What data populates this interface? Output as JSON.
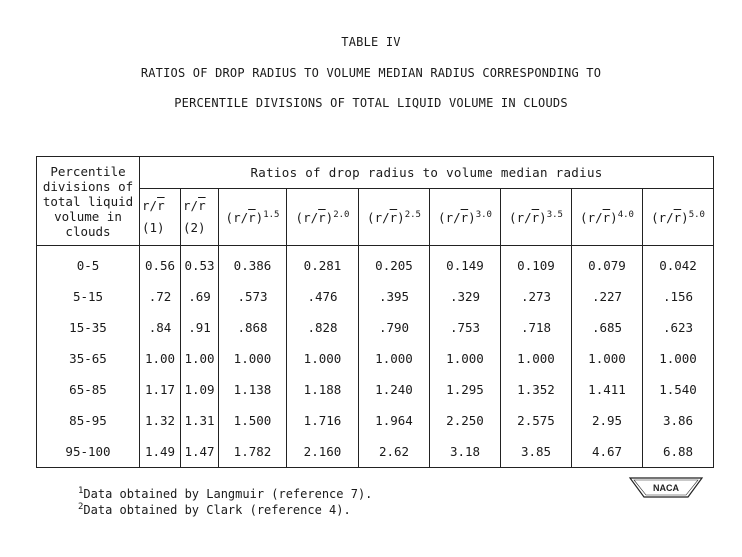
{
  "titles": {
    "table_number": "TABLE IV",
    "line1": "RATIOS OF DROP RADIUS TO VOLUME MEDIAN RADIUS CORRESPONDING TO",
    "line2": "PERCENTILE DIVISIONS OF TOTAL LIQUID VOLUME IN CLOUDS"
  },
  "table": {
    "row_header": [
      "Percentile",
      "divisions of",
      "total liquid",
      "volume in",
      "clouds"
    ],
    "span_header": "Ratios of drop radius to volume median radius",
    "columns": [
      {
        "base": "r/r",
        "note": "(1)"
      },
      {
        "base": "r/r",
        "note": "(2)"
      },
      {
        "base": "(r/r)",
        "exp": "1.5"
      },
      {
        "base": "(r/r)",
        "exp": "2.0"
      },
      {
        "base": "(r/r)",
        "exp": "2.5"
      },
      {
        "base": "(r/r)",
        "exp": "3.0"
      },
      {
        "base": "(r/r)",
        "exp": "3.5"
      },
      {
        "base": "(r/r)",
        "exp": "4.0"
      },
      {
        "base": "(r/r)",
        "exp": "5.0"
      }
    ],
    "rows": [
      {
        "label": "0-5",
        "values": [
          "0.56",
          "0.53",
          "0.386",
          "0.281",
          "0.205",
          "0.149",
          "0.109",
          "0.079",
          "0.042"
        ]
      },
      {
        "label": "5-15",
        "values": [
          ".72",
          ".69",
          ".573",
          ".476",
          ".395",
          ".329",
          ".273",
          ".227",
          ".156"
        ]
      },
      {
        "label": "15-35",
        "values": [
          ".84",
          ".91",
          ".868",
          ".828",
          ".790",
          ".753",
          ".718",
          ".685",
          ".623"
        ]
      },
      {
        "label": "35-65",
        "values": [
          "1.00",
          "1.00",
          "1.000",
          "1.000",
          "1.000",
          "1.000",
          "1.000",
          "1.000",
          "1.000"
        ]
      },
      {
        "label": "65-85",
        "values": [
          "1.17",
          "1.09",
          "1.138",
          "1.188",
          "1.240",
          "1.295",
          "1.352",
          "1.411",
          "1.540"
        ]
      },
      {
        "label": "85-95",
        "values": [
          "1.32",
          "1.31",
          "1.500",
          "1.716",
          "1.964",
          "2.250",
          "2.575",
          "2.95",
          "3.86"
        ]
      },
      {
        "label": "95-100",
        "values": [
          "1.49",
          "1.47",
          "1.782",
          "2.160",
          "2.62",
          "3.18",
          "3.85",
          "4.67",
          "6.88"
        ]
      }
    ]
  },
  "footnotes": [
    {
      "mark": "1",
      "text": "Data obtained by Langmuir (reference 7)."
    },
    {
      "mark": "2",
      "text": "Data obtained by Clark (reference 4)."
    }
  ],
  "logo": {
    "text": "NACA"
  }
}
